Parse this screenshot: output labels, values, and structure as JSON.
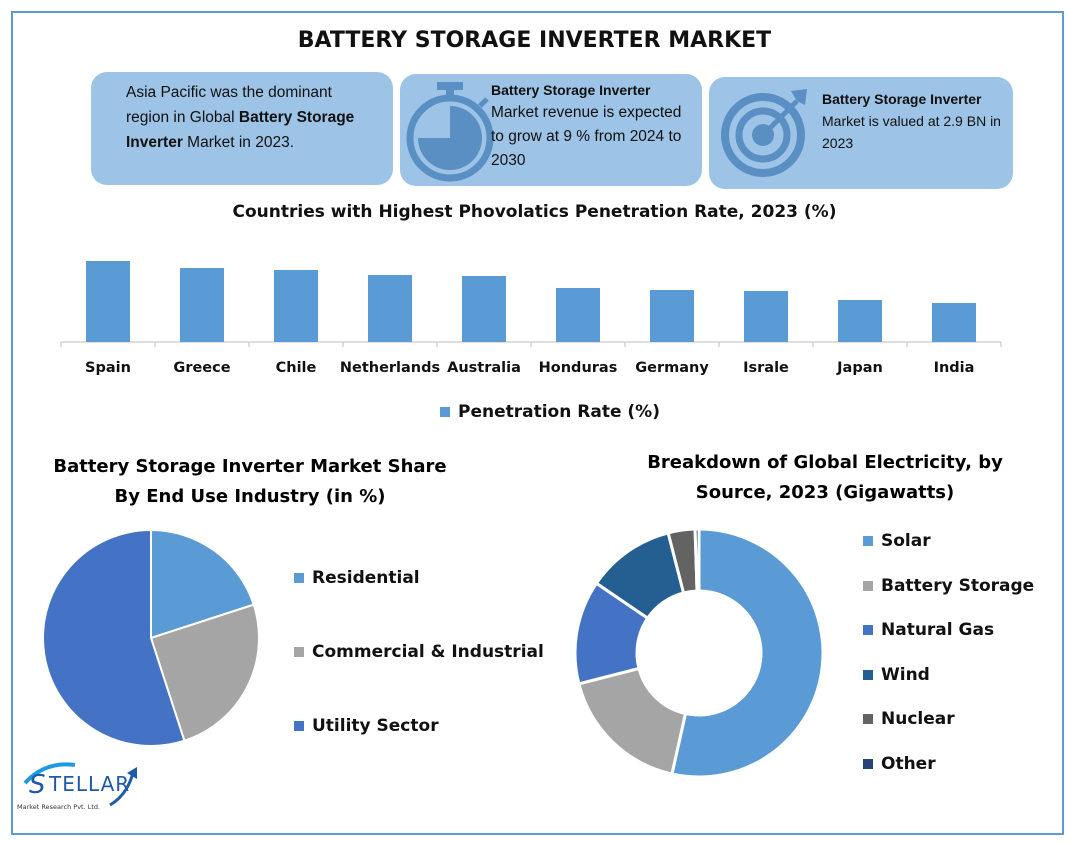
{
  "title": "BATTERY STORAGE INVERTER MARKET",
  "cards": [
    {
      "pre": "Asia Pacific was the dominant region in Global ",
      "bold": "Battery Storage Inverter",
      "post": " Market in 2023.",
      "icon": "none"
    },
    {
      "bold": "Battery Storage Inverter",
      "post": "Market revenue is expected to grow at 9 % from 2024 to 2030",
      "icon": "stopwatch-icon"
    },
    {
      "bold": "Battery Storage Inverter",
      "post": " Market is valued at 2.9 BN in 2023",
      "icon": "target-icon"
    }
  ],
  "colors": {
    "box": "#9dc3e6",
    "icon": "#5a8fc3",
    "frame": "#5b9bd5"
  },
  "logo": {
    "name": "STELLAR",
    "sub": "Market Research Pvt. Ltd."
  },
  "chart_data": [
    {
      "type": "bar",
      "title": "Countries with Highest Phovolatics Penetration Rate, 2023 (%)",
      "categories": [
        "Spain",
        "Greece",
        "Chile",
        "Netherlands",
        "Australia",
        "Honduras",
        "Germany",
        "Israle",
        "Japan",
        "India"
      ],
      "values": [
        81,
        74,
        72,
        67,
        66,
        54,
        52,
        51,
        42,
        39
      ],
      "legend": "Penetration Rate (%)",
      "legend_position": "bottom",
      "color": "#5b9bd5",
      "grid": false
    },
    {
      "type": "pie",
      "title": "Battery Storage Inverter Market Share By End Use Industry (in %)",
      "title_lines": [
        "Battery Storage Inverter Market Share",
        "By End Use Industry (in %)"
      ],
      "labels": [
        "Residential",
        "Commercial & Industrial",
        "Utility Sector"
      ],
      "values": [
        20,
        25,
        55
      ],
      "colors": [
        "#5b9bd5",
        "#a5a5a5",
        "#4472c4"
      ],
      "legend_position": "right"
    },
    {
      "type": "pie",
      "donut": true,
      "title": "Breakdown of Global Electricity, by Source, 2023 (Gigawatts)",
      "title_lines": [
        "Breakdown of Global Electricity, by",
        "Source, 2023 (Gigawatts)"
      ],
      "labels": [
        "Solar",
        "Battery Storage",
        "Natural Gas",
        "Wind",
        "Nuclear",
        "Other"
      ],
      "values": [
        53.5,
        17.5,
        13.5,
        11.5,
        3.5,
        0.5
      ],
      "colors": [
        "#5b9bd5",
        "#a5a5a5",
        "#4472c4",
        "#255e91",
        "#636363",
        "#264478"
      ],
      "legend_position": "right"
    }
  ]
}
